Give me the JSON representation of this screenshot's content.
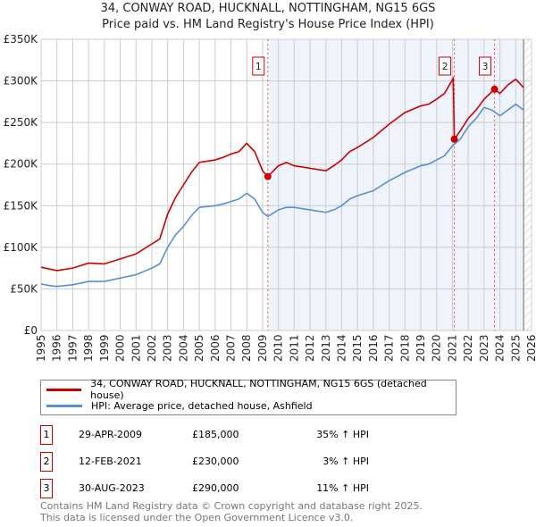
{
  "title": "34, CONWAY ROAD, HUCKNALL, NOTTINGHAM, NG15 6GS",
  "subtitle": "Price paid vs. HM Land Registry's House Price Index (HPI)",
  "chart_data": {
    "type": "line",
    "title": "34, CONWAY ROAD, HUCKNALL, NOTTINGHAM, NG15 6GS",
    "subtitle": "Price paid vs. HM Land Registry's House Price Index (HPI)",
    "xlim": [
      1995,
      2026
    ],
    "ylim": [
      0,
      350000
    ],
    "x_ticks": [
      "1995",
      "1996",
      "1997",
      "1998",
      "1999",
      "2000",
      "2001",
      "2002",
      "2003",
      "2004",
      "2005",
      "2006",
      "2007",
      "2008",
      "2009",
      "2010",
      "2011",
      "2012",
      "2013",
      "2014",
      "2015",
      "2016",
      "2017",
      "2018",
      "2019",
      "2020",
      "2021",
      "2022",
      "2023",
      "2024",
      "2025",
      "2026"
    ],
    "y_ticks": [
      {
        "v": 0,
        "label": "£0"
      },
      {
        "v": 50000,
        "label": "£50K"
      },
      {
        "v": 100000,
        "label": "£100K"
      },
      {
        "v": 150000,
        "label": "£150K"
      },
      {
        "v": 200000,
        "label": "£200K"
      },
      {
        "v": 250000,
        "label": "£250K"
      },
      {
        "v": 300000,
        "label": "£300K"
      },
      {
        "v": 350000,
        "label": "£350K"
      }
    ],
    "grid": true,
    "series": [
      {
        "name": "34, CONWAY ROAD, HUCKNALL, NOTTINGHAM, NG15 6GS (detached house)",
        "color": "#cc0000",
        "x": [
          1995,
          1996,
          1997,
          1998,
          1999,
          2000,
          2001,
          2002,
          2002.5,
          2003,
          2003.5,
          2004,
          2004.5,
          2005,
          2006,
          2006.5,
          2007,
          2007.5,
          2008,
          2008.5,
          2009,
          2009.33,
          2010,
          2010.5,
          2011,
          2012,
          2013,
          2013.5,
          2014,
          2014.5,
          2015,
          2016,
          2017,
          2017.5,
          2018,
          2019,
          2019.5,
          2020,
          2020.5,
          2021.05,
          2021.12,
          2021.5,
          2022,
          2022.5,
          2023,
          2023.66,
          2024,
          2024.5,
          2025,
          2025.5
        ],
        "y": [
          76000,
          72000,
          75000,
          81000,
          80000,
          86000,
          92000,
          104000,
          110000,
          140000,
          160000,
          175000,
          190000,
          202000,
          205000,
          208000,
          212000,
          215000,
          225000,
          215000,
          192000,
          185000,
          198000,
          202000,
          198000,
          195000,
          192000,
          198000,
          205000,
          215000,
          220000,
          232000,
          248000,
          255000,
          262000,
          270000,
          272000,
          278000,
          285000,
          303000,
          230000,
          240000,
          255000,
          265000,
          278000,
          290000,
          285000,
          295000,
          302000,
          292000
        ]
      },
      {
        "name": "HPI: Average price, detached house, Ashfield",
        "color": "#5b8fd4",
        "x": [
          1995,
          1995.5,
          1996,
          1997,
          1998,
          1999,
          2000,
          2001,
          2002,
          2002.5,
          2003,
          2003.5,
          2004,
          2004.5,
          2005,
          2006,
          2006.5,
          2007,
          2007.5,
          2008,
          2008.5,
          2009,
          2009.33,
          2010,
          2010.5,
          2011,
          2012,
          2013,
          2013.5,
          2014,
          2014.5,
          2015,
          2016,
          2017,
          2017.5,
          2018,
          2019,
          2019.5,
          2020,
          2020.5,
          2021,
          2021.5,
          2022,
          2022.5,
          2023,
          2023.5,
          2024,
          2024.5,
          2025,
          2025.5
        ],
        "y": [
          56000,
          54000,
          53000,
          55000,
          59000,
          59000,
          63000,
          67000,
          75000,
          80000,
          100000,
          115000,
          125000,
          138000,
          148000,
          150000,
          152000,
          155000,
          158000,
          165000,
          158000,
          142000,
          137000,
          145000,
          148000,
          148000,
          145000,
          142000,
          145000,
          150000,
          158000,
          162000,
          168000,
          180000,
          185000,
          190000,
          198000,
          200000,
          205000,
          210000,
          222000,
          230000,
          245000,
          255000,
          268000,
          265000,
          258000,
          265000,
          272000,
          265000
        ]
      }
    ],
    "sales": [
      {
        "n": "1",
        "x": 2009.33,
        "y": 185000
      },
      {
        "n": "2",
        "x": 2021.12,
        "y": 230000
      },
      {
        "n": "3",
        "x": 2023.66,
        "y": 290000
      }
    ],
    "shaded_from": 2009.33,
    "data_end": 2025.5
  },
  "legend": {
    "red": "34, CONWAY ROAD, HUCKNALL, NOTTINGHAM, NG15 6GS (detached house)",
    "blue": "HPI: Average price, detached house, Ashfield"
  },
  "table": [
    {
      "n": "1",
      "date": "29-APR-2009",
      "price": "£185,000",
      "hpi": "35% ↑ HPI"
    },
    {
      "n": "2",
      "date": "12-FEB-2021",
      "price": "£230,000",
      "hpi": "3% ↑ HPI"
    },
    {
      "n": "3",
      "date": "30-AUG-2023",
      "price": "£290,000",
      "hpi": "11% ↑ HPI"
    }
  ],
  "footer": [
    "Contains HM Land Registry data © Crown copyright and database right 2025.",
    "This data is licensed under the Open Government Licence v3.0."
  ]
}
